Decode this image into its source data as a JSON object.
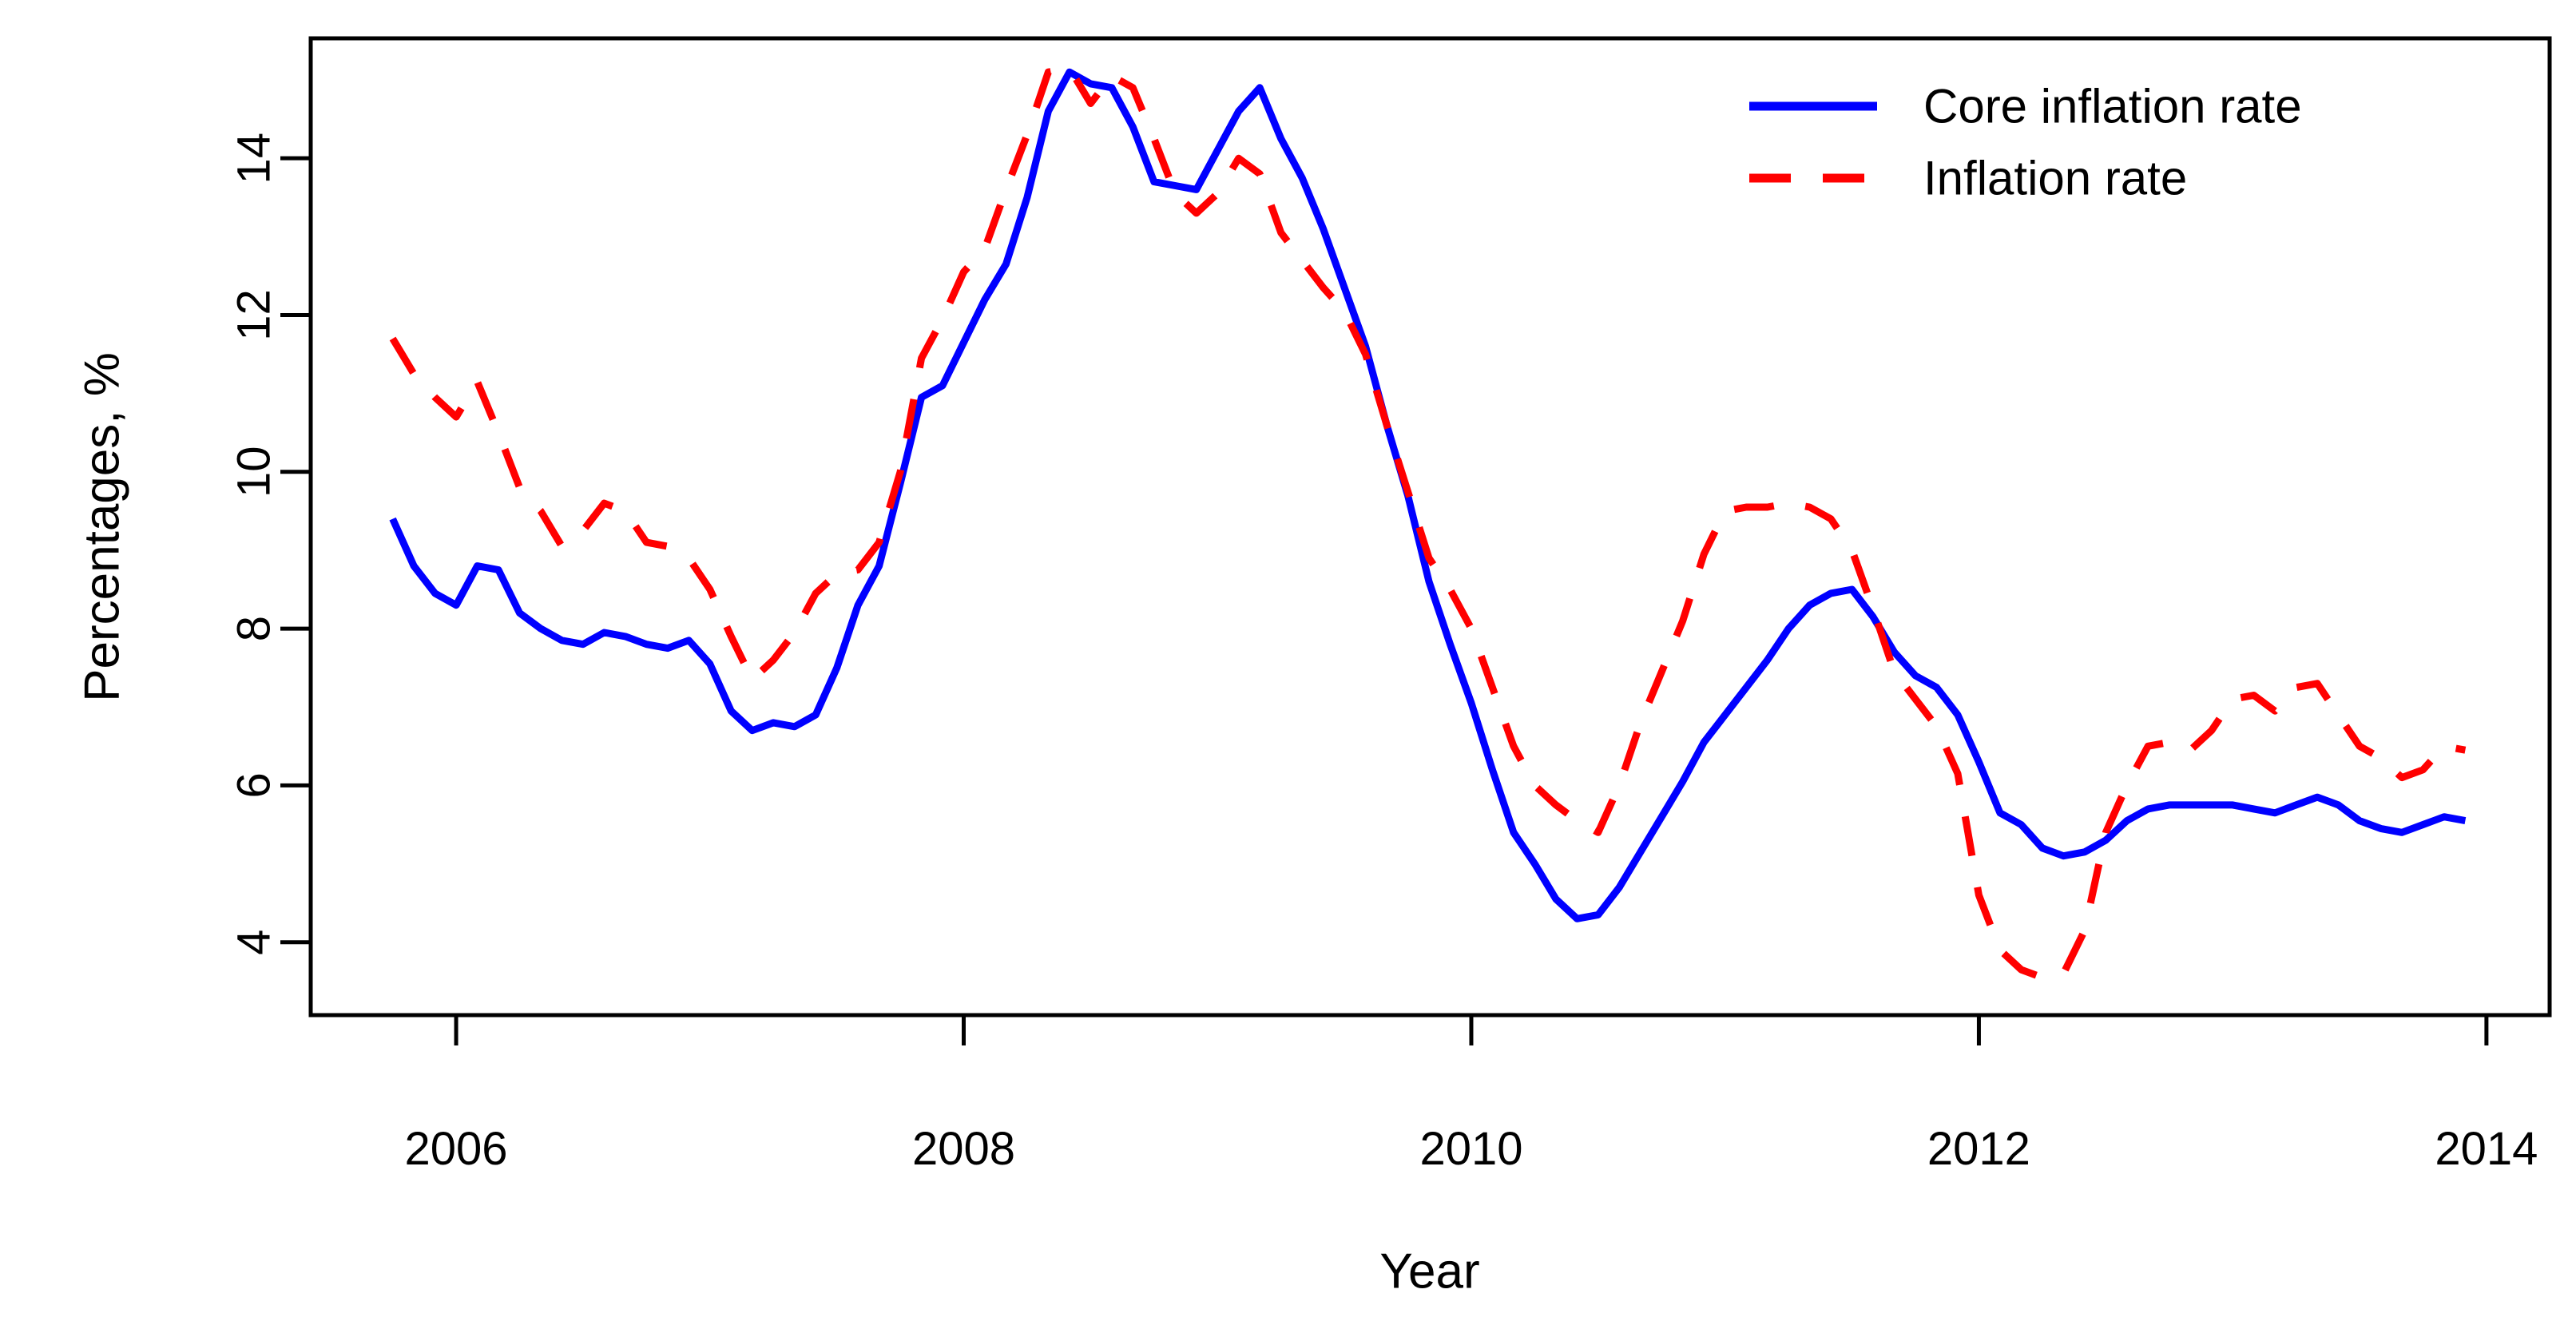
{
  "figure": {
    "background": "#ffffff",
    "border_color": "#000000"
  },
  "chart_data": {
    "type": "line",
    "title": "",
    "xlabel": "Year",
    "ylabel": "Percentages, %",
    "grid": false,
    "legend_position": "topright",
    "xlim_years": [
      2005.427,
      2014.249
    ],
    "ylim": [
      3.07,
      15.53
    ],
    "x_tick_years": [
      2006,
      2008,
      2010,
      2012,
      2014
    ],
    "x_tick_labels": [
      "2006",
      "2008",
      "2010",
      "2012",
      "2014"
    ],
    "y_ticks": [
      4,
      6,
      8,
      10,
      12,
      14
    ],
    "y_tick_labels": [
      "4",
      "6",
      "8",
      "10",
      "12",
      "14"
    ],
    "x_start_year": 2005,
    "x_start_month": 10,
    "x_interval": "monthly",
    "series": [
      {
        "name": "Core inflation rate",
        "color": "#0000ff",
        "style": "solid",
        "values": [
          9.4,
          8.8,
          8.45,
          8.3,
          8.8,
          8.75,
          8.2,
          8.0,
          7.85,
          7.8,
          7.95,
          7.9,
          7.8,
          7.75,
          7.85,
          7.55,
          6.95,
          6.7,
          6.8,
          6.75,
          6.9,
          7.5,
          8.3,
          8.8,
          9.85,
          10.95,
          11.1,
          11.65,
          12.2,
          12.65,
          13.5,
          14.6,
          15.1,
          14.95,
          14.9,
          14.4,
          13.7,
          13.65,
          13.6,
          14.1,
          14.6,
          14.9,
          14.25,
          13.75,
          13.1,
          12.35,
          11.6,
          10.6,
          9.7,
          8.6,
          7.8,
          7.05,
          6.2,
          5.4,
          5.0,
          4.55,
          4.3,
          4.35,
          4.7,
          5.15,
          5.6,
          6.05,
          6.55,
          6.9,
          7.25,
          7.6,
          8.0,
          8.3,
          8.45,
          8.5,
          8.15,
          7.7,
          7.4,
          7.25,
          6.9,
          6.3,
          5.65,
          5.5,
          5.2,
          5.1,
          5.15,
          5.3,
          5.55,
          5.7,
          5.75,
          5.75,
          5.75,
          5.75,
          5.7,
          5.65,
          5.75,
          5.85,
          5.75,
          5.55,
          5.45,
          5.4,
          5.5,
          5.6,
          5.55
        ]
      },
      {
        "name": "Inflation rate",
        "color": "#ff0000",
        "style": "dashed",
        "values": [
          11.7,
          11.25,
          10.95,
          10.7,
          11.15,
          10.5,
          9.8,
          9.5,
          9.05,
          9.25,
          9.6,
          9.5,
          9.1,
          9.05,
          8.9,
          8.5,
          7.9,
          7.35,
          7.6,
          7.95,
          8.45,
          8.7,
          8.75,
          9.1,
          10.0,
          11.45,
          11.95,
          12.55,
          12.85,
          13.6,
          14.3,
          15.1,
          15.15,
          14.7,
          15.05,
          14.9,
          14.25,
          13.55,
          13.3,
          13.55,
          14.0,
          13.8,
          13.05,
          12.7,
          12.35,
          12.05,
          11.5,
          10.6,
          9.75,
          8.9,
          8.5,
          8.0,
          7.25,
          6.5,
          6.0,
          5.75,
          5.55,
          5.4,
          6.0,
          6.8,
          7.45,
          8.1,
          8.95,
          9.5,
          9.55,
          9.55,
          9.6,
          9.55,
          9.4,
          9.0,
          8.25,
          7.45,
          7.1,
          6.75,
          6.15,
          4.6,
          3.9,
          3.65,
          3.55,
          3.6,
          4.15,
          5.4,
          6.0,
          6.5,
          6.55,
          6.45,
          6.7,
          7.1,
          7.15,
          6.95,
          7.25,
          7.3,
          6.9,
          6.5,
          6.35,
          6.1,
          6.2,
          6.5,
          6.45
        ]
      }
    ]
  }
}
